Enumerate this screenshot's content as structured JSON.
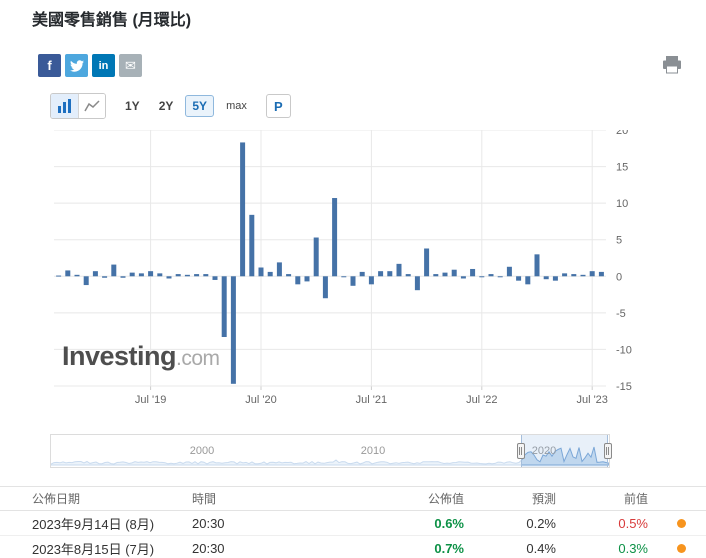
{
  "page": {
    "title": "美國零售銷售 (月環比)"
  },
  "share": {
    "facebook_label": "f",
    "linkedin_label": "in"
  },
  "toolbar": {
    "ranges": [
      "1Y",
      "2Y",
      "5Y",
      "max"
    ],
    "selected_range": "5Y",
    "p_label": "P"
  },
  "watermark": {
    "brand": "Investing",
    "suffix": ".com"
  },
  "navigator": {
    "labels": [
      "2000",
      "2010",
      "2020"
    ]
  },
  "chart_data": {
    "type": "bar",
    "title": "美國零售銷售 (月環比)",
    "frequency": "monthly",
    "start": "2018-09",
    "end": "2023-08",
    "values": [
      0.1,
      0.8,
      0.2,
      -1.2,
      0.7,
      -0.2,
      1.6,
      -0.2,
      0.5,
      0.4,
      0.7,
      0.4,
      -0.3,
      0.3,
      0.2,
      0.3,
      0.3,
      -0.5,
      -8.3,
      -14.7,
      18.3,
      8.4,
      1.2,
      0.6,
      1.9,
      0.3,
      -1.1,
      -0.7,
      5.3,
      -3.0,
      10.7,
      0.0,
      -1.3,
      0.6,
      -1.1,
      0.7,
      0.7,
      1.7,
      0.3,
      -1.9,
      3.8,
      0.3,
      0.5,
      0.9,
      -0.3,
      1.0,
      0.0,
      0.3,
      0.0,
      1.3,
      -0.6,
      -1.1,
      3.0,
      -0.4,
      -0.6,
      0.4,
      0.3,
      0.2,
      0.7,
      0.6
    ],
    "x_ticks": [
      {
        "label": "Jul '19",
        "month_index": 10
      },
      {
        "label": "Jul '20",
        "month_index": 22
      },
      {
        "label": "Jul '21",
        "month_index": 34
      },
      {
        "label": "Jul '22",
        "month_index": 46
      },
      {
        "label": "Jul '23",
        "month_index": 58
      }
    ],
    "y_ticks": [
      20,
      15,
      10,
      5,
      0,
      -5,
      -10,
      -15
    ],
    "ylim": [
      -15,
      20
    ],
    "bar_color": "#4572a7",
    "grid": "on",
    "y_axis_position": "right",
    "legend": "off"
  },
  "table": {
    "headers": [
      "公佈日期",
      "時間",
      "公佈值",
      "預測",
      "前值"
    ],
    "rows": [
      {
        "date": "2023年9月14日 (8月)",
        "time": "20:30",
        "actual": "0.6%",
        "actual_color": "green",
        "forecast": "0.2%",
        "previous": "0.5%",
        "previous_color": "red",
        "icon_color": "orange"
      },
      {
        "date": "2023年8月15日 (7月)",
        "time": "20:30",
        "actual": "0.7%",
        "actual_color": "green",
        "forecast": "0.4%",
        "previous": "0.3%",
        "previous_color": "green",
        "icon_color": "orange"
      }
    ]
  },
  "colors": {
    "green": "#0c9146",
    "red": "#d83a3a",
    "orange": "#f7941e",
    "blue_accent": "#1a6cb3",
    "bar": "#4572a7"
  }
}
